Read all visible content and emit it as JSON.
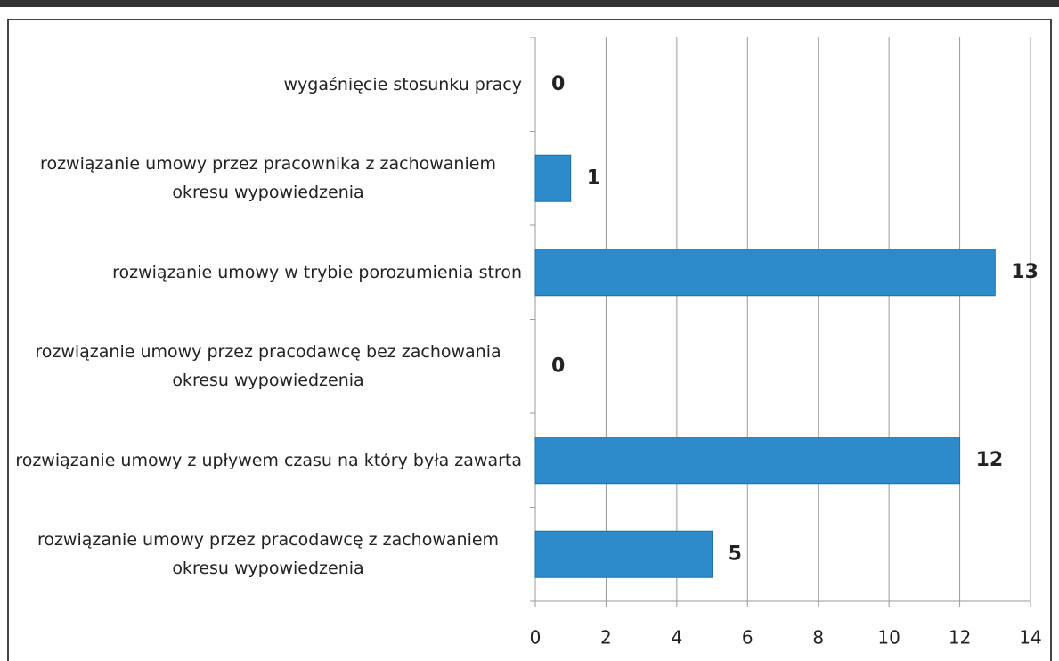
{
  "chart_data": {
    "type": "bar",
    "orientation": "horizontal",
    "categories": [
      "wygaśnięcie stosunku pracy",
      "rozwiązanie umowy przez pracownika z zachowaniem okresu wypowiedzenia",
      "rozwiązanie umowy w trybie porozumienia stron",
      "rozwiązanie umowy przez pracodawcę bez zachowania okresu wypowiedzenia",
      "rozwiązanie umowy z upływem czasu na który była zawarta",
      "rozwiązanie umowy przez pracodawcę z zachowaniem okresu wypowiedzenia"
    ],
    "values": [
      0,
      1,
      13,
      0,
      12,
      5
    ],
    "color": "#2e8bcb",
    "xlim": [
      0,
      14
    ],
    "xticks": [
      0,
      2,
      4,
      6,
      8,
      10,
      12,
      14
    ],
    "grid": true
  }
}
